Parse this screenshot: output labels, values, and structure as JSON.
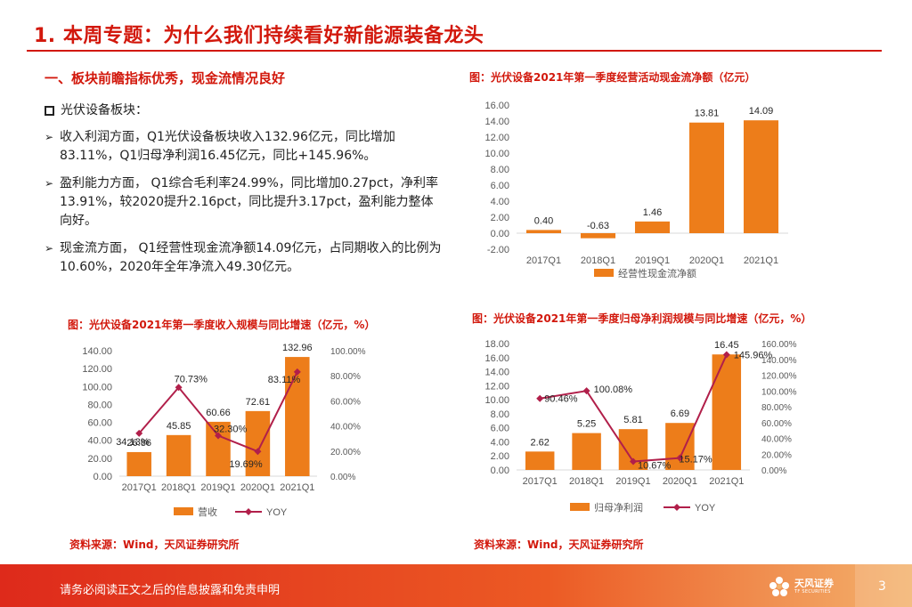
{
  "page": {
    "title": "1. 本周专题：为什么我们持续看好新能源装备龙头",
    "section_heading": "一、板块前瞻指标优秀，现金流情况良好",
    "subsection_label": "光伏设备板块：",
    "bullets": [
      "收入利润方面，Q1光伏设备板块收入132.96亿元，同比增加83.11%，Q1归母净利润16.45亿元，同比+145.96%。",
      "盈利能力方面， Q1综合毛利率24.99%，同比增加0.27pct，净利率13.91%，较2020提升2.16pct，同比提升3.17pct，盈利能力整体向好。",
      "现金流方面， Q1经营性现金流净额14.09亿元，占同期收入的比例为10.60%，2020年全年净流入49.30亿元。"
    ],
    "page_number": "3"
  },
  "footer": {
    "disclaimer": "请务必阅读正文之后的信息披露和免责申明",
    "logo_cn": "天风证券",
    "logo_en": "TF SECURITIES"
  },
  "sources": {
    "left": "资料来源：Wind，天风证券研究所",
    "right": "资料来源：Wind，天风证券研究所"
  },
  "colors": {
    "accent": "#d2180c",
    "bar": "#ed7d1a",
    "line": "#b11f4a"
  },
  "chart_data": [
    {
      "id": "cashflow",
      "type": "bar",
      "title": "图：光伏设备2021年第一季度经营活动现金流净额（亿元）",
      "categories": [
        "2017Q1",
        "2018Q1",
        "2019Q1",
        "2020Q1",
        "2021Q1"
      ],
      "series": [
        {
          "name": "经营性现金流净额",
          "values": [
            0.4,
            -0.63,
            1.46,
            13.81,
            14.09
          ],
          "labels": [
            "0.40",
            "-0.63",
            "1.46",
            "13.81",
            "14.09"
          ]
        }
      ],
      "y_ticks": [
        "16.00",
        "14.00",
        "12.00",
        "10.00",
        "8.00",
        "6.00",
        "4.00",
        "2.00",
        "0.00",
        "-2.00"
      ],
      "ylim": [
        -2,
        16
      ],
      "legend": "bottom"
    },
    {
      "id": "revenue",
      "type": "bar+line",
      "title": "图：光伏设备2021年第一季度收入规模与同比增速（亿元，%）",
      "categories": [
        "2017Q1",
        "2018Q1",
        "2019Q1",
        "2020Q1",
        "2021Q1"
      ],
      "series": [
        {
          "name": "营收",
          "kind": "bar",
          "axis": "left",
          "values": [
            26.86,
            45.85,
            60.66,
            72.61,
            132.96
          ],
          "labels": [
            "26.86",
            "45.85",
            "60.66",
            "72.61",
            "132.96"
          ]
        },
        {
          "name": "YOY",
          "kind": "line",
          "axis": "right",
          "values": [
            34.13,
            70.73,
            32.3,
            19.69,
            83.11
          ],
          "labels": [
            "34.13%",
            "70.73%",
            "32.30%",
            "19.69%",
            "83.11%"
          ]
        }
      ],
      "y_ticks": [
        "140.00",
        "120.00",
        "100.00",
        "80.00",
        "60.00",
        "40.00",
        "20.00",
        "0.00"
      ],
      "y2_ticks": [
        "100.00%",
        "80.00%",
        "60.00%",
        "40.00%",
        "20.00%",
        "0.00%"
      ],
      "ylim": [
        0,
        140
      ],
      "y2lim": [
        0,
        100
      ],
      "legend": "bottom"
    },
    {
      "id": "netprofit",
      "type": "bar+line",
      "title": "图：光伏设备2021年第一季度归母净利润规模与同比增速（亿元，%）",
      "categories": [
        "2017Q1",
        "2018Q1",
        "2019Q1",
        "2020Q1",
        "2021Q1"
      ],
      "series": [
        {
          "name": "归母净利润",
          "kind": "bar",
          "axis": "left",
          "values": [
            2.62,
            5.25,
            5.81,
            6.69,
            16.45
          ],
          "labels": [
            "2.62",
            "5.25",
            "5.81",
            "6.69",
            "16.45"
          ]
        },
        {
          "name": "YOY",
          "kind": "line",
          "axis": "right",
          "values": [
            90.46,
            100.08,
            10.67,
            15.17,
            145.96
          ],
          "labels": [
            "90.46%",
            "100.08%",
            "10.67%",
            "15.17%",
            "145.96%"
          ]
        }
      ],
      "y_ticks": [
        "18.00",
        "16.00",
        "14.00",
        "12.00",
        "10.00",
        "8.00",
        "6.00",
        "4.00",
        "2.00",
        "0.00"
      ],
      "y2_ticks": [
        "160.00%",
        "140.00%",
        "120.00%",
        "100.00%",
        "80.00%",
        "60.00%",
        "40.00%",
        "20.00%",
        "0.00%"
      ],
      "ylim": [
        0,
        18
      ],
      "y2lim": [
        0,
        160
      ],
      "legend": "bottom"
    }
  ]
}
